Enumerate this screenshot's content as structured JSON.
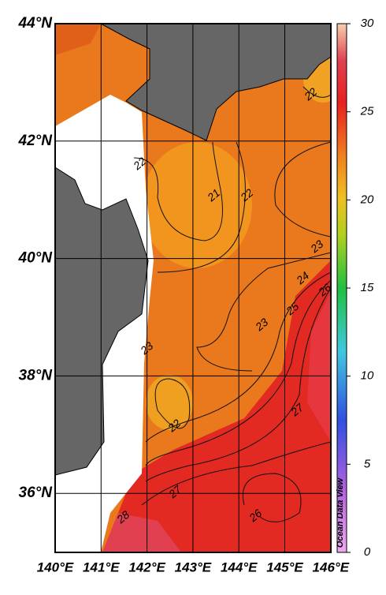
{
  "map": {
    "lat_labels": [
      "44°N",
      "42°N",
      "40°N",
      "38°N",
      "36°N"
    ],
    "lon_labels": [
      "140°E",
      "141°E",
      "142°E",
      "143°E",
      "144°E",
      "145°E",
      "146°E"
    ],
    "colorbar": {
      "range": [
        0,
        30
      ],
      "ticks": [
        0,
        5,
        10,
        15,
        20,
        25,
        30
      ]
    },
    "contour_labels": [
      "22",
      "22",
      "21",
      "22",
      "23",
      "24",
      "26",
      "25",
      "23",
      "23",
      "22",
      "27",
      "27",
      "26",
      "28"
    ],
    "credit": "Ocean Data View"
  }
}
